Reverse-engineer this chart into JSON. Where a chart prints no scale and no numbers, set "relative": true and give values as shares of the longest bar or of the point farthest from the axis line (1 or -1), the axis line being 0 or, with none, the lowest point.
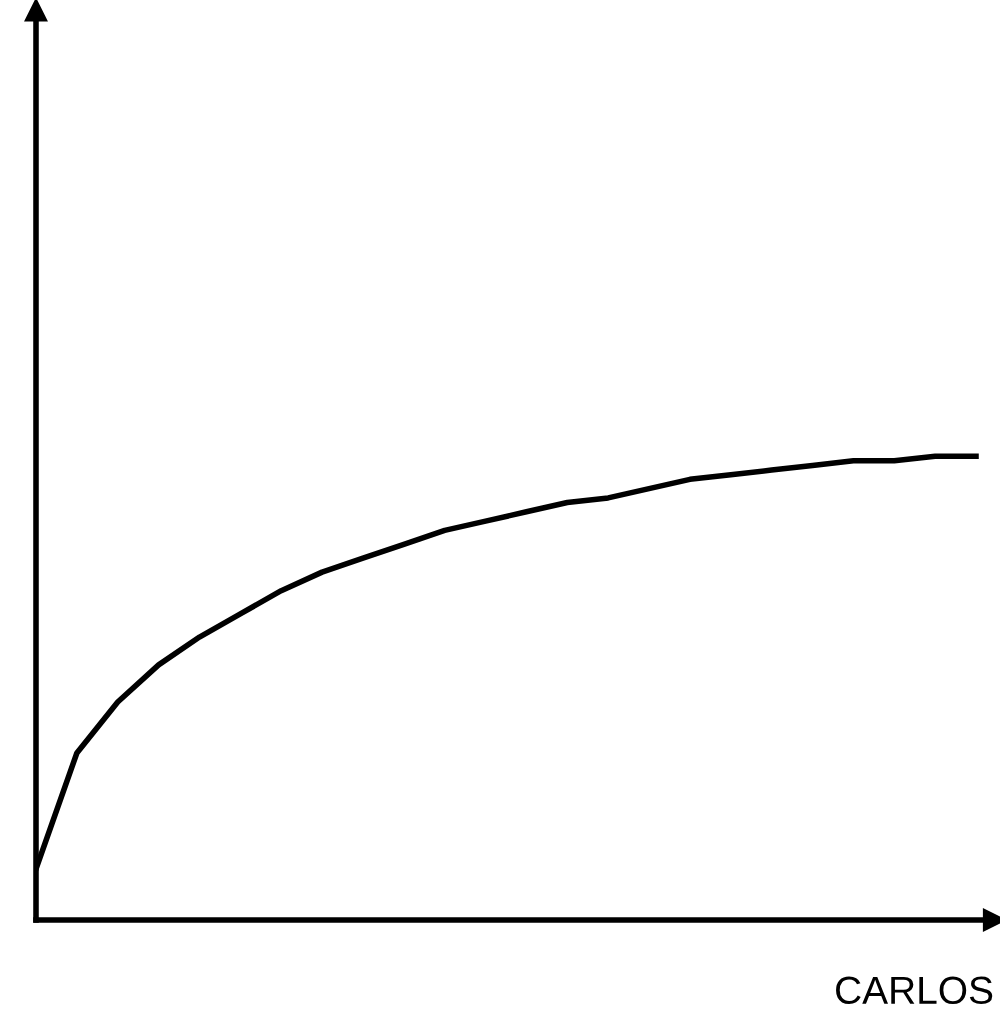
{
  "chart_data": {
    "type": "line",
    "relative": true,
    "xlabel": "CARLOS",
    "categories": [
      null,
      null,
      null,
      null,
      null,
      null,
      null,
      null,
      null,
      null,
      null,
      null,
      null,
      null,
      null,
      null,
      null,
      null,
      null,
      null,
      null,
      null,
      null,
      null
    ],
    "series": [
      {
        "color": "#000000",
        "values": [
          0.11,
          0.36,
          0.47,
          0.55,
          0.61,
          0.66,
          0.71,
          0.75,
          0.78,
          0.81,
          0.84,
          0.86,
          0.88,
          0.9,
          0.91,
          0.93,
          0.95,
          0.96,
          0.97,
          0.98,
          0.99,
          0.99,
          1.0,
          1.0
        ]
      }
    ],
    "grid": false,
    "marker": "none",
    "line_style": "solid",
    "tick_labels": false
  }
}
